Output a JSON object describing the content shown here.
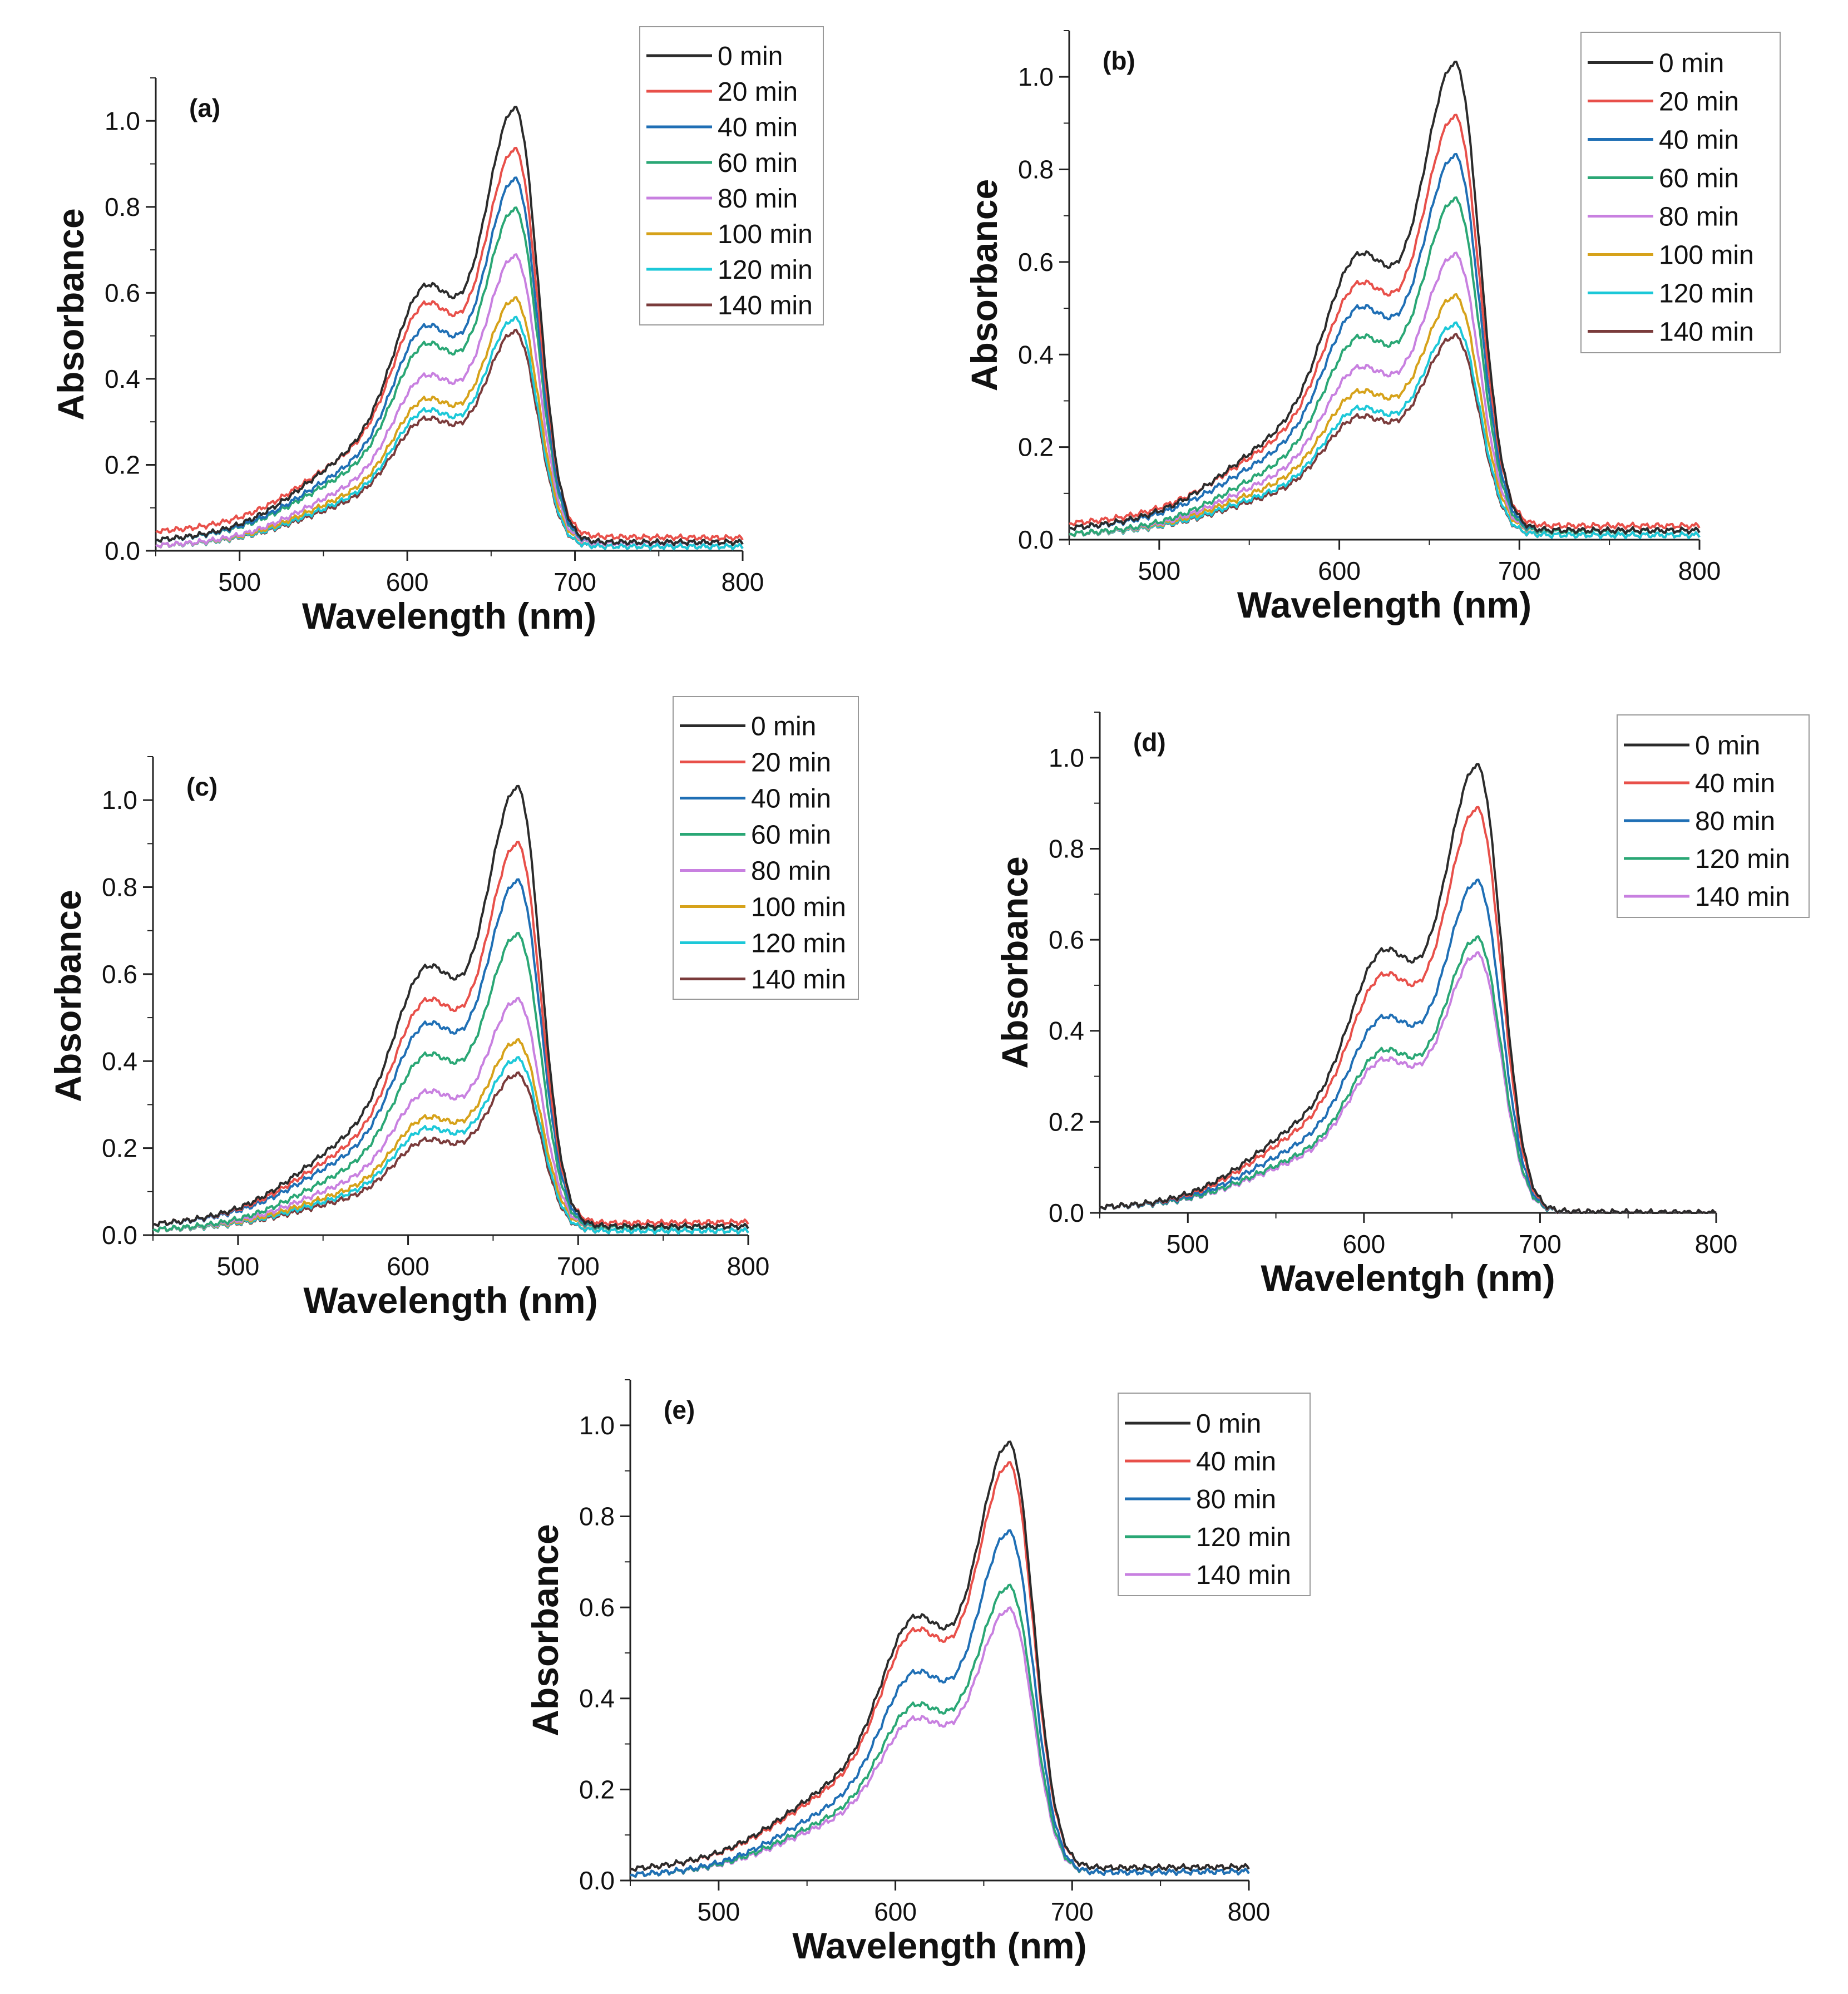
{
  "figure": {
    "colors": {
      "0 min": "#2b2b2b",
      "20 min": "#e8504a",
      "40 min": "#1f6fb5",
      "60 min": "#2aa775",
      "80 min": "#c880e0",
      "100 min": "#d6a21a",
      "120 min": "#1cc8d8",
      "140 min": "#7a3b3b",
      "40 min (d,e)": "#e8504a",
      "80 min (d,e)": "#1f6fb5",
      "120 min (d,e)": "#2aa775",
      "140 min (d,e)": "#c880e0"
    }
  },
  "chart_data": [
    {
      "panel": "(a)",
      "type": "line",
      "xlabel": "Wavelength (nm)",
      "ylabel": "Absorbance",
      "xlim": [
        450,
        800
      ],
      "ylim": [
        0,
        1.1
      ],
      "xticks": [
        500,
        600,
        700,
        800
      ],
      "yticks": [
        "0.0",
        "0.2",
        "0.4",
        "0.6",
        "0.8",
        "1.0"
      ],
      "legend_position": "top-right",
      "series": [
        {
          "name": "0 min",
          "color": "#2b2b2b",
          "peak": 1.01,
          "shoulder": 0.58,
          "baseline_left": 0.02,
          "baseline_right": 0.02
        },
        {
          "name": "20 min",
          "color": "#e8504a",
          "peak": 0.9,
          "shoulder": 0.53,
          "baseline_left": 0.04,
          "baseline_right": 0.03
        },
        {
          "name": "40 min",
          "color": "#1f6fb5",
          "peak": 0.845,
          "shoulder": 0.49,
          "baseline_left": 0.02,
          "baseline_right": 0.02
        },
        {
          "name": "60 min",
          "color": "#2aa775",
          "peak": 0.775,
          "shoulder": 0.45,
          "baseline_left": 0.02,
          "baseline_right": 0.02
        },
        {
          "name": "80 min",
          "color": "#c880e0",
          "peak": 0.67,
          "shoulder": 0.38,
          "baseline_left": 0.01,
          "baseline_right": 0.02
        },
        {
          "name": "100 min",
          "color": "#d6a21a",
          "peak": 0.57,
          "shoulder": 0.33,
          "baseline_left": 0.01,
          "baseline_right": 0.02
        },
        {
          "name": "120 min",
          "color": "#1cc8d8",
          "peak": 0.53,
          "shoulder": 0.31,
          "baseline_left": 0.01,
          "baseline_right": 0.01
        },
        {
          "name": "140 min",
          "color": "#7a3b3b",
          "peak": 0.5,
          "shoulder": 0.29,
          "baseline_left": 0.01,
          "baseline_right": 0.01
        }
      ]
    },
    {
      "panel": "(b)",
      "type": "line",
      "xlabel": "Wavelength (nm)",
      "ylabel": "Absorbance",
      "xlim": [
        450,
        800
      ],
      "ylim": [
        0,
        1.1
      ],
      "xticks": [
        500,
        600,
        700,
        800
      ],
      "yticks": [
        "0.0",
        "0.2",
        "0.4",
        "0.6",
        "0.8",
        "1.0"
      ],
      "legend_position": "top-right",
      "series": [
        {
          "name": "0 min",
          "color": "#2b2b2b",
          "peak": 1.01,
          "shoulder": 0.58,
          "baseline_left": 0.02,
          "baseline_right": 0.02
        },
        {
          "name": "20 min",
          "color": "#e8504a",
          "peak": 0.885,
          "shoulder": 0.51,
          "baseline_left": 0.03,
          "baseline_right": 0.03
        },
        {
          "name": "40 min",
          "color": "#1f6fb5",
          "peak": 0.81,
          "shoulder": 0.47,
          "baseline_left": 0.02,
          "baseline_right": 0.02
        },
        {
          "name": "60 min",
          "color": "#2aa775",
          "peak": 0.72,
          "shoulder": 0.41,
          "baseline_left": 0.01,
          "baseline_right": 0.02
        },
        {
          "name": "80 min",
          "color": "#c880e0",
          "peak": 0.6,
          "shoulder": 0.35,
          "baseline_left": 0.01,
          "baseline_right": 0.02
        },
        {
          "name": "100 min",
          "color": "#d6a21a",
          "peak": 0.51,
          "shoulder": 0.3,
          "baseline_left": 0.01,
          "baseline_right": 0.02
        },
        {
          "name": "120 min",
          "color": "#1cc8d8",
          "peak": 0.455,
          "shoulder": 0.27,
          "baseline_left": 0.01,
          "baseline_right": 0.01
        },
        {
          "name": "140 min",
          "color": "#7a3b3b",
          "peak": 0.43,
          "shoulder": 0.25,
          "baseline_left": 0.01,
          "baseline_right": 0.01
        }
      ]
    },
    {
      "panel": "(c)",
      "type": "line",
      "xlabel": "Wavelength (nm)",
      "ylabel": "Absorbance",
      "xlim": [
        450,
        800
      ],
      "ylim": [
        0,
        1.1
      ],
      "xticks": [
        500,
        600,
        700,
        800
      ],
      "yticks": [
        "0.0",
        "0.2",
        "0.4",
        "0.6",
        "0.8",
        "1.0"
      ],
      "legend_position": "top-right",
      "series": [
        {
          "name": "0 min",
          "color": "#2b2b2b",
          "peak": 1.01,
          "shoulder": 0.58,
          "baseline_left": 0.02,
          "baseline_right": 0.02
        },
        {
          "name": "20 min",
          "color": "#e8504a",
          "peak": 0.875,
          "shoulder": 0.5,
          "baseline_left": 0.02,
          "baseline_right": 0.03
        },
        {
          "name": "40 min",
          "color": "#1f6fb5",
          "peak": 0.795,
          "shoulder": 0.45,
          "baseline_left": 0.02,
          "baseline_right": 0.02
        },
        {
          "name": "60 min",
          "color": "#2aa775",
          "peak": 0.675,
          "shoulder": 0.39,
          "baseline_left": 0.01,
          "baseline_right": 0.02
        },
        {
          "name": "80 min",
          "color": "#c880e0",
          "peak": 0.525,
          "shoulder": 0.31,
          "baseline_left": 0.01,
          "baseline_right": 0.02
        },
        {
          "name": "100 min",
          "color": "#d6a21a",
          "peak": 0.43,
          "shoulder": 0.25,
          "baseline_left": 0.01,
          "baseline_right": 0.02
        },
        {
          "name": "120 min",
          "color": "#1cc8d8",
          "peak": 0.395,
          "shoulder": 0.23,
          "baseline_left": 0.01,
          "baseline_right": 0.01
        },
        {
          "name": "140 min",
          "color": "#7a3b3b",
          "peak": 0.36,
          "shoulder": 0.2,
          "baseline_left": 0.01,
          "baseline_right": 0.01
        }
      ]
    },
    {
      "panel": "(d)",
      "type": "line",
      "xlabel": "Wavelentgh (nm)",
      "ylabel": "Absorbance",
      "xlim": [
        450,
        800
      ],
      "ylim": [
        0,
        1.1
      ],
      "xticks": [
        500,
        600,
        700,
        800
      ],
      "yticks": [
        "0.0",
        "0.2",
        "0.4",
        "0.6",
        "0.8",
        "1.0"
      ],
      "legend_position": "top-right",
      "series": [
        {
          "name": "0 min",
          "color": "#2b2b2b",
          "peak": 0.98,
          "shoulder": 0.55,
          "baseline_left": 0.01,
          "baseline_right": 0.0
        },
        {
          "name": "40 min",
          "color": "#e8504a",
          "peak": 0.885,
          "shoulder": 0.5,
          "baseline_left": 0.01,
          "baseline_right": 0.0
        },
        {
          "name": "80 min",
          "color": "#1f6fb5",
          "peak": 0.725,
          "shoulder": 0.41,
          "baseline_left": 0.01,
          "baseline_right": 0.0
        },
        {
          "name": "120 min",
          "color": "#2aa775",
          "peak": 0.6,
          "shoulder": 0.34,
          "baseline_left": 0.01,
          "baseline_right": 0.0
        },
        {
          "name": "140 min",
          "color": "#c880e0",
          "peak": 0.565,
          "shoulder": 0.32,
          "baseline_left": 0.01,
          "baseline_right": 0.0
        }
      ]
    },
    {
      "panel": "(e)",
      "type": "line",
      "xlabel": "Wavelength (nm)",
      "ylabel": "Absorbance",
      "xlim": [
        450,
        800
      ],
      "ylim": [
        0,
        1.1
      ],
      "xticks": [
        500,
        600,
        700,
        800
      ],
      "yticks": [
        "0.0",
        "0.2",
        "0.4",
        "0.6",
        "0.8",
        "1.0"
      ],
      "legend_position": "top-right",
      "series": [
        {
          "name": "0 min",
          "color": "#2b2b2b",
          "peak": 0.935,
          "shoulder": 0.54,
          "baseline_left": 0.02,
          "baseline_right": 0.03
        },
        {
          "name": "40 min",
          "color": "#e8504a",
          "peak": 0.89,
          "shoulder": 0.51,
          "baseline_left": 0.02,
          "baseline_right": 0.03
        },
        {
          "name": "80 min",
          "color": "#1f6fb5",
          "peak": 0.75,
          "shoulder": 0.43,
          "baseline_left": 0.01,
          "baseline_right": 0.02
        },
        {
          "name": "120 min",
          "color": "#2aa775",
          "peak": 0.63,
          "shoulder": 0.36,
          "baseline_left": 0.01,
          "baseline_right": 0.02
        },
        {
          "name": "140 min",
          "color": "#c880e0",
          "peak": 0.58,
          "shoulder": 0.33,
          "baseline_left": 0.01,
          "baseline_right": 0.02
        }
      ]
    }
  ]
}
